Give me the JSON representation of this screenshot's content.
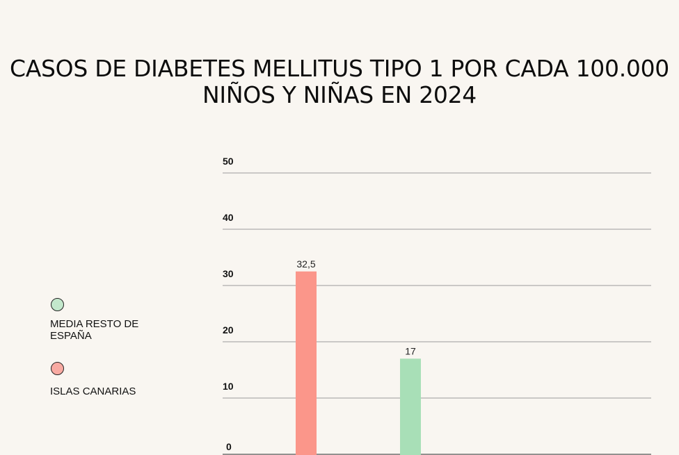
{
  "chart_data": {
    "type": "bar",
    "title": "CASOS DE DIABETES MELLITUS TIPO 1 POR CADA 100.000 NIÑOS Y NIÑAS EN 2024",
    "categories": [
      "ISLAS CANARIAS",
      "MEDIA RESTO DE ESPAÑA"
    ],
    "values": [
      32.5,
      17
    ],
    "value_labels": [
      "32,5",
      "17"
    ],
    "colors": [
      "#fb968a",
      "#a8dfb7"
    ],
    "ylim": [
      0,
      50
    ],
    "yticks": [
      0,
      10,
      20,
      30,
      40,
      50
    ],
    "grid": true,
    "xlabel": "",
    "ylabel": "",
    "legend": {
      "placement": "left",
      "entries": [
        {
          "label": "MEDIA RESTO DE ESPAÑA",
          "color": "#c3e8cc"
        },
        {
          "label": "ISLAS CANARIAS",
          "color": "#f8aaa2"
        }
      ]
    }
  }
}
